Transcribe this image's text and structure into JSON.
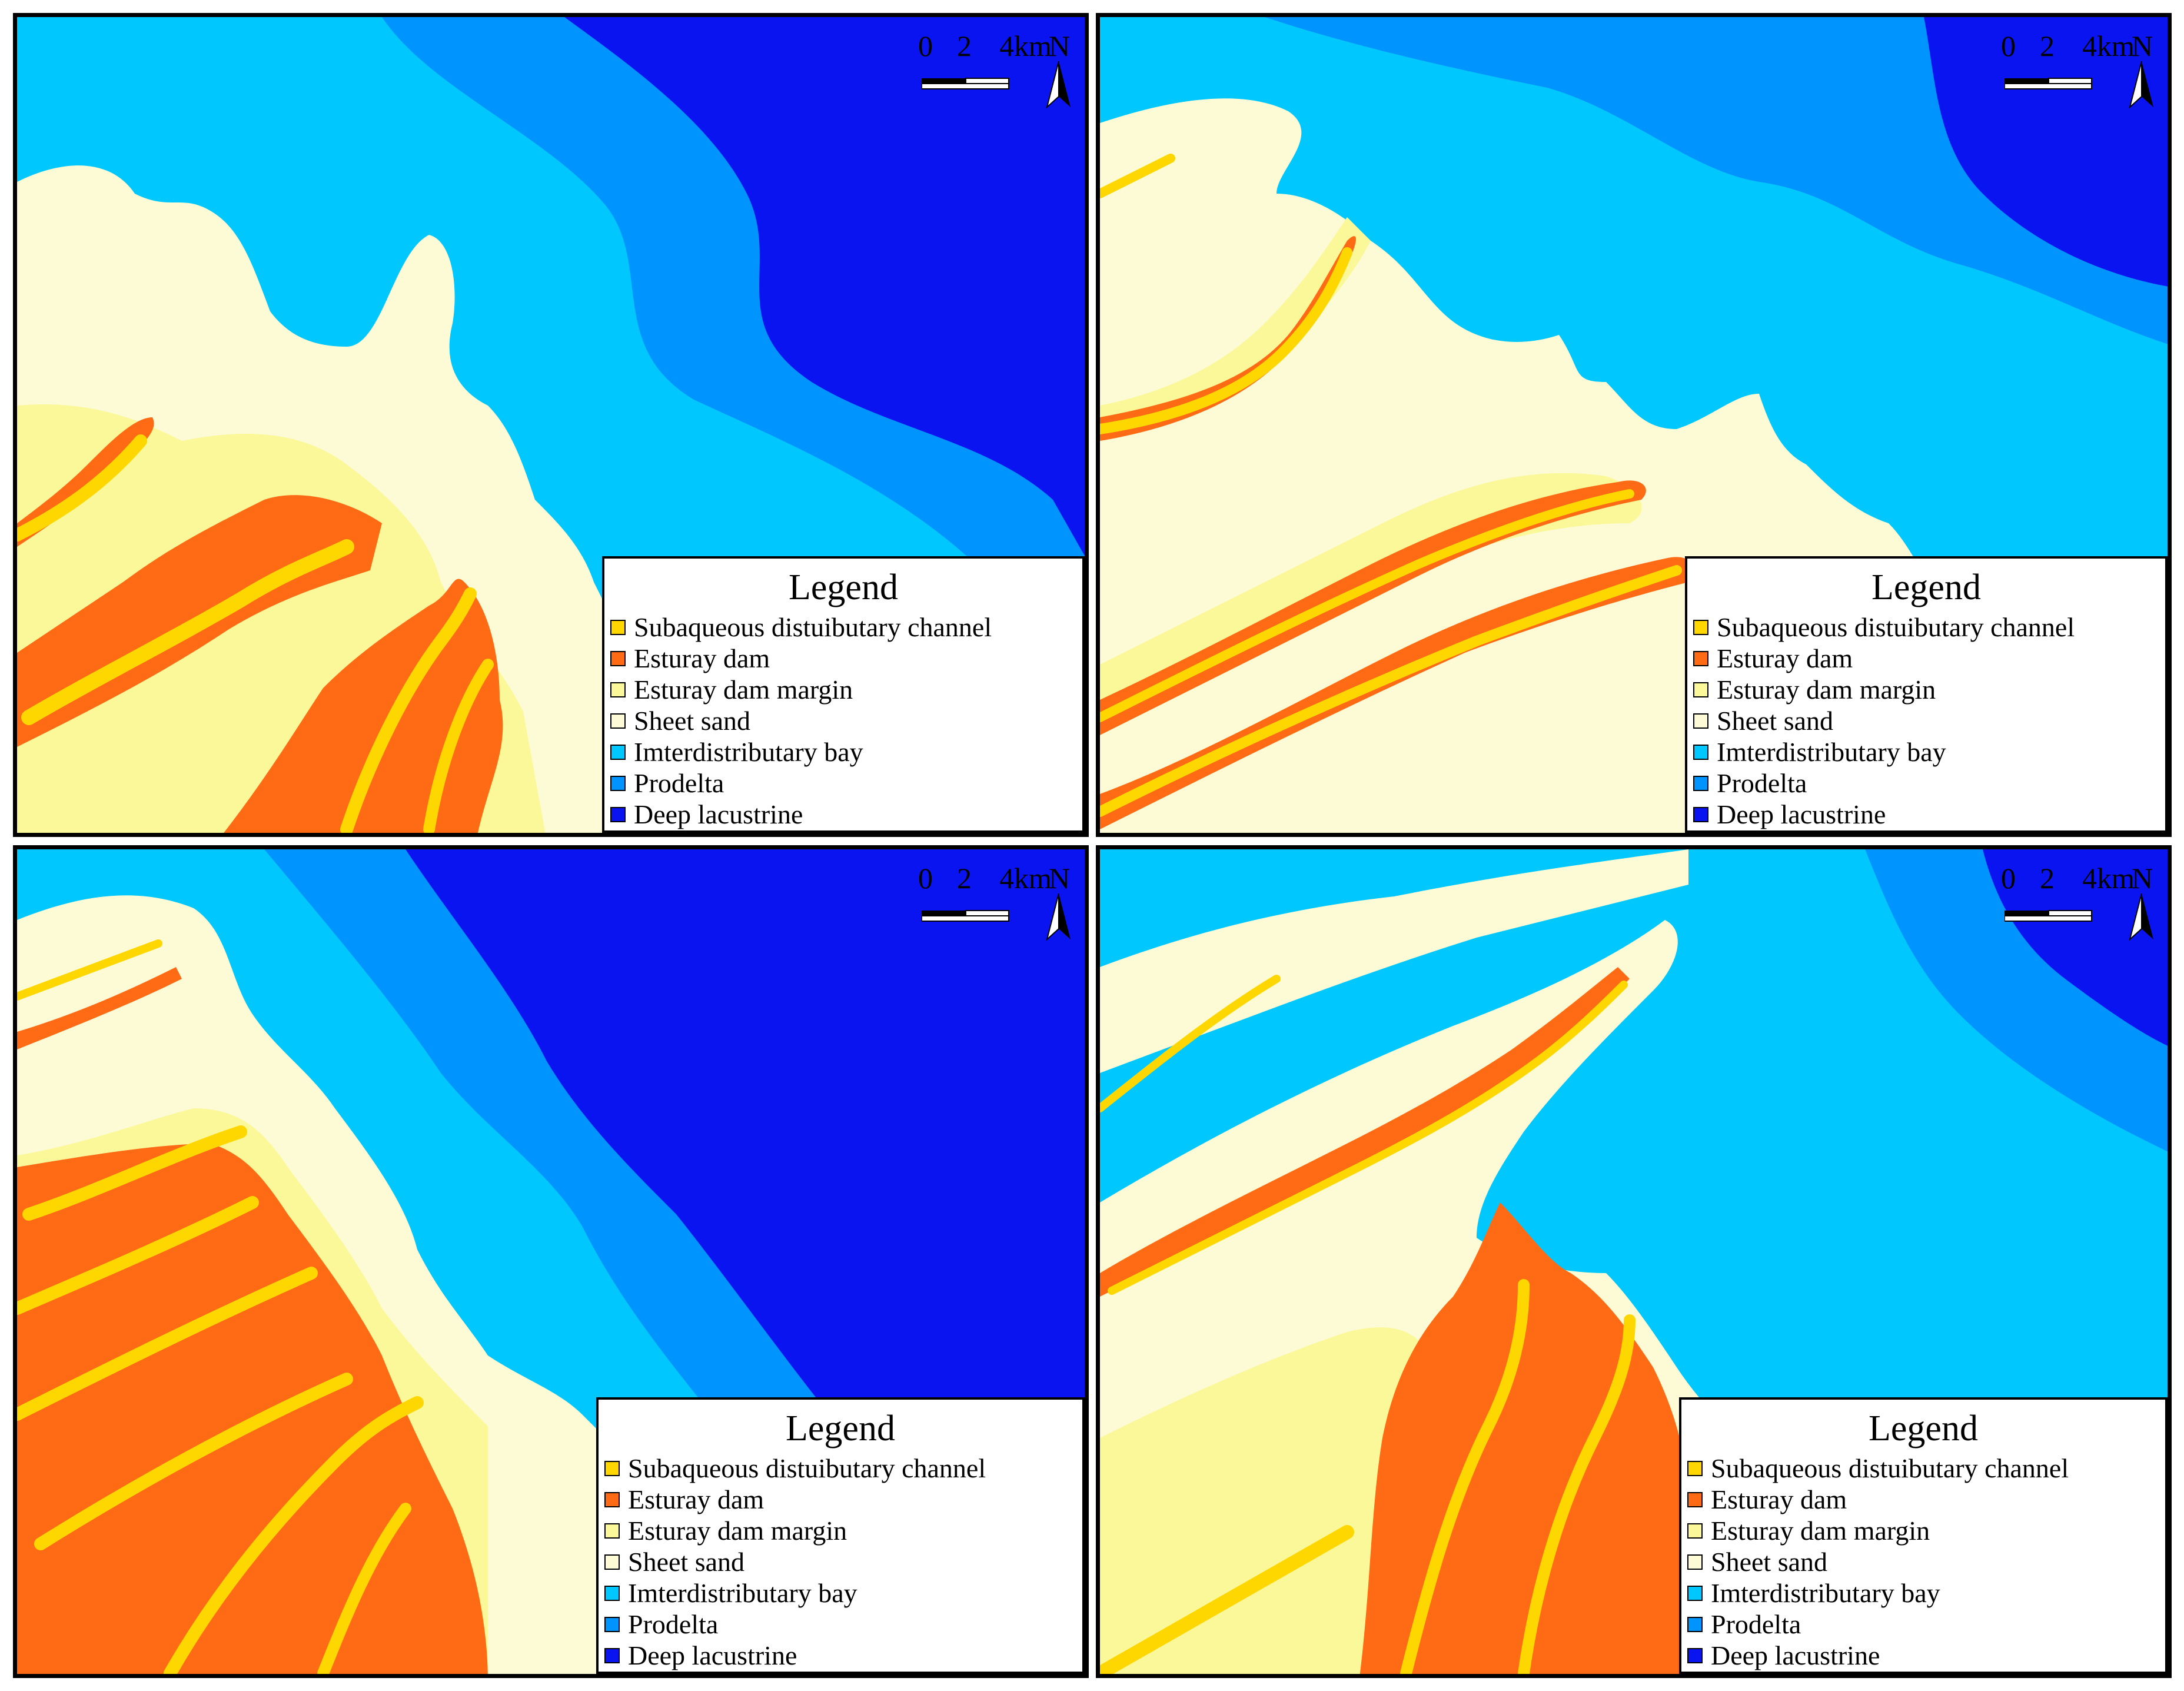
{
  "colors": {
    "channel": "#ffd700",
    "dam": "#ff6a14",
    "dam_margin": "#fbf89a",
    "sheet_sand": "#fdfbd6",
    "interdistributary_bay": "#00c8ff",
    "prodelta": "#0094ff",
    "deep_lacustrine": "#0a14f0"
  },
  "scale_bar": {
    "label_0": "0",
    "label_2": "2",
    "label_4": "4km",
    "north": "N"
  },
  "legend": {
    "title": "Legend",
    "items": [
      {
        "label": "Subaqueous distuibutary channel",
        "color": "#ffd700",
        "icon": "yellow-swatch"
      },
      {
        "label": "Esturay dam",
        "color": "#ff6a14",
        "icon": "orange-swatch"
      },
      {
        "label": "Esturay dam margin",
        "color": "#fbf89a",
        "icon": "pale-yellow-swatch"
      },
      {
        "label": "Sheet sand",
        "color": "#fdfbd6",
        "icon": "cream-swatch"
      },
      {
        "label": "Imterdistributary bay",
        "color": "#00c8ff",
        "icon": "cyan-swatch"
      },
      {
        "label": "Prodelta",
        "color": "#0094ff",
        "icon": "blue-swatch"
      },
      {
        "label": "Deep lacustrine",
        "color": "#0a14f0",
        "icon": "dark-blue-swatch"
      }
    ]
  },
  "panels": [
    {
      "id": "top-left"
    },
    {
      "id": "top-right"
    },
    {
      "id": "bottom-left"
    },
    {
      "id": "bottom-right"
    }
  ]
}
